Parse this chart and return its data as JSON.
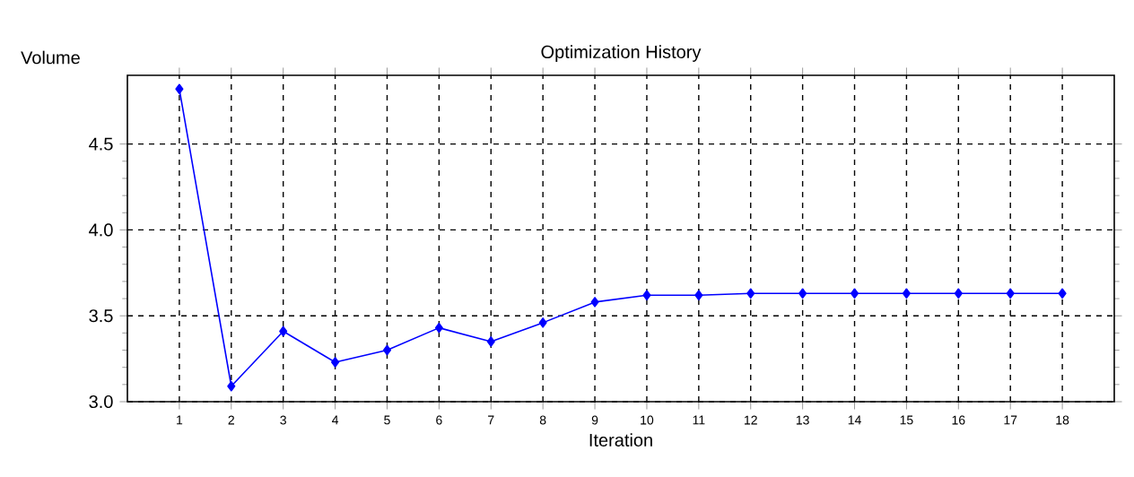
{
  "chart_data": {
    "type": "line",
    "title": "Optimization History",
    "xlabel": "Iteration",
    "ylabel": "Volume",
    "x": [
      1,
      2,
      3,
      4,
      5,
      6,
      7,
      8,
      9,
      10,
      11,
      12,
      13,
      14,
      15,
      16,
      17,
      18
    ],
    "series": [
      {
        "color": "#0000ff",
        "values": [
          4.82,
          3.09,
          3.41,
          3.23,
          3.3,
          3.43,
          3.35,
          3.46,
          3.58,
          3.62,
          3.62,
          3.63,
          3.63,
          3.63,
          3.63,
          3.63,
          3.63,
          3.63
        ]
      }
    ],
    "xlim": [
      0,
      19
    ],
    "xticks": [
      1,
      2,
      3,
      4,
      5,
      6,
      7,
      8,
      9,
      10,
      11,
      12,
      13,
      14,
      15,
      16,
      17,
      18
    ],
    "ylim": [
      3.0,
      4.9
    ],
    "yticks": [
      {
        "value": 3.0,
        "label": "3.0"
      },
      {
        "value": 3.5,
        "label": "3.5"
      },
      {
        "value": 4.0,
        "label": "4.0"
      },
      {
        "value": 4.5,
        "label": "4.5"
      }
    ],
    "grid": true,
    "marker": "diamond",
    "line_style": "solid"
  }
}
